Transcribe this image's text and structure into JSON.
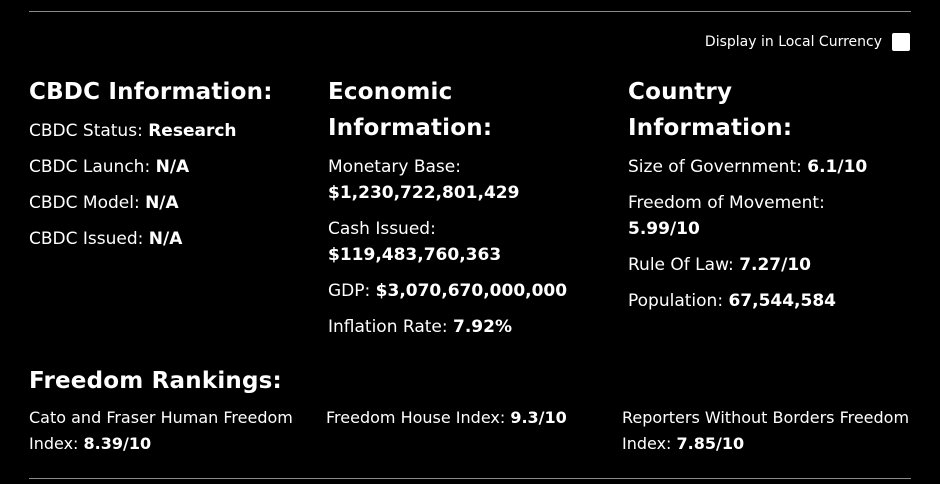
{
  "currency_toggle": {
    "label": "Display in Local Currency",
    "checked": false
  },
  "cbdc": {
    "title": "CBDC Information:",
    "items": [
      {
        "label": "CBDC Status:",
        "value": "Research"
      },
      {
        "label": "CBDC Launch:",
        "value": "N/A"
      },
      {
        "label": "CBDC Model:",
        "value": "N/A"
      },
      {
        "label": "CBDC Issued:",
        "value": "N/A"
      }
    ]
  },
  "economic": {
    "title_line1": "Economic",
    "title_line2": "Information:",
    "items": [
      {
        "label": "Monetary Base:",
        "value": "$1,230,722,801,429"
      },
      {
        "label": "Cash Issued:",
        "value": "$119,483,760,363"
      },
      {
        "label": "GDP:",
        "value": "$3,070,670,000,000"
      },
      {
        "label": "Inflation Rate:",
        "value": "7.92%"
      }
    ]
  },
  "country": {
    "title_line1": "Country",
    "title_line2": "Information:",
    "items": [
      {
        "label": "Size of Government:",
        "value": "6.1/10"
      },
      {
        "label": "Freedom of Movement:",
        "value": "5.99/10"
      },
      {
        "label": "Rule Of Law:",
        "value": "7.27/10"
      },
      {
        "label": "Population:",
        "value": "67,544,584"
      }
    ]
  },
  "freedom": {
    "title": "Freedom Rankings:",
    "items": [
      {
        "label": "Cato and Fraser Human Freedom Index:",
        "value": "8.39/10"
      },
      {
        "label": "Freedom House Index:",
        "value": "9.3/10"
      },
      {
        "label": "Reporters Without Borders Freedom Index:",
        "value": "7.85/10"
      }
    ]
  }
}
